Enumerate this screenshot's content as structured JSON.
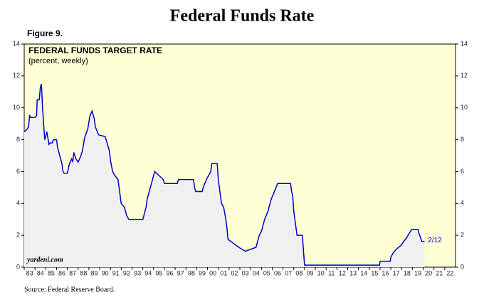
{
  "chart_data": {
    "type": "line",
    "title": "Federal Funds Rate",
    "figure_label": "Figure 9.",
    "panel_title": "FEDERAL FUNDS TARGET RATE",
    "subtitle": "(percent, weekly)",
    "watermark": "yardeni.com",
    "end_label": "2/12",
    "source": "Source: Federal Reserve Board.",
    "xlim": [
      1983,
      2023
    ],
    "ylim": [
      0,
      14
    ],
    "yticks": [
      0,
      2,
      4,
      6,
      8,
      10,
      12,
      14
    ],
    "xticks": [
      {
        "value": 1983,
        "label": "83"
      },
      {
        "value": 1984,
        "label": "84"
      },
      {
        "value": 1985,
        "label": "85"
      },
      {
        "value": 1986,
        "label": "86"
      },
      {
        "value": 1987,
        "label": "87"
      },
      {
        "value": 1988,
        "label": "88"
      },
      {
        "value": 1989,
        "label": "89"
      },
      {
        "value": 1990,
        "label": "90"
      },
      {
        "value": 1991,
        "label": "91"
      },
      {
        "value": 1992,
        "label": "92"
      },
      {
        "value": 1993,
        "label": "93"
      },
      {
        "value": 1994,
        "label": "94"
      },
      {
        "value": 1995,
        "label": "95"
      },
      {
        "value": 1996,
        "label": "96"
      },
      {
        "value": 1997,
        "label": "97"
      },
      {
        "value": 1998,
        "label": "98"
      },
      {
        "value": 1999,
        "label": "99"
      },
      {
        "value": 2000,
        "label": "00"
      },
      {
        "value": 2001,
        "label": "01"
      },
      {
        "value": 2002,
        "label": "02"
      },
      {
        "value": 2003,
        "label": "03"
      },
      {
        "value": 2004,
        "label": "04"
      },
      {
        "value": 2005,
        "label": "05"
      },
      {
        "value": 2006,
        "label": "06"
      },
      {
        "value": 2007,
        "label": "07"
      },
      {
        "value": 2008,
        "label": "08"
      },
      {
        "value": 2009,
        "label": "09"
      },
      {
        "value": 2010,
        "label": "10"
      },
      {
        "value": 2011,
        "label": "11"
      },
      {
        "value": 2012,
        "label": "12"
      },
      {
        "value": 2013,
        "label": "13"
      },
      {
        "value": 2014,
        "label": "14"
      },
      {
        "value": 2015,
        "label": "15"
      },
      {
        "value": 2016,
        "label": "16"
      },
      {
        "value": 2017,
        "label": "17"
      },
      {
        "value": 2018,
        "label": "18"
      },
      {
        "value": 2019,
        "label": "19"
      },
      {
        "value": 2020,
        "label": "20"
      },
      {
        "value": 2021,
        "label": "21"
      },
      {
        "value": 2022,
        "label": "22"
      }
    ],
    "color": "#0000cc",
    "fill_color": "#f0f0f0",
    "background": "#ffffd6",
    "x": [
      1983.0,
      1983.2,
      1983.4,
      1983.5,
      1983.6,
      1984.0,
      1984.15,
      1984.2,
      1984.4,
      1984.5,
      1984.6,
      1984.7,
      1984.8,
      1984.9,
      1985.0,
      1985.1,
      1985.3,
      1985.4,
      1985.6,
      1985.7,
      1986.0,
      1986.1,
      1986.3,
      1986.5,
      1986.6,
      1986.7,
      1987.0,
      1987.2,
      1987.4,
      1987.5,
      1987.6,
      1987.8,
      1988.0,
      1988.2,
      1988.4,
      1988.6,
      1988.9,
      1989.1,
      1989.3,
      1989.5,
      1989.6,
      1989.9,
      1990.5,
      1990.6,
      1990.9,
      1991.0,
      1991.2,
      1991.4,
      1991.7,
      1991.8,
      1991.9,
      1992.0,
      1992.3,
      1992.5,
      1992.7,
      1994.0,
      1994.1,
      1994.3,
      1994.4,
      1994.6,
      1994.9,
      1995.1,
      1995.5,
      1995.9,
      1996.0,
      1997.2,
      1997.3,
      1998.7,
      1998.8,
      1998.9,
      1999.5,
      1999.6,
      1999.9,
      2000.1,
      2000.3,
      2000.4,
      2000.9,
      2001.0,
      2001.1,
      2001.3,
      2001.5,
      2001.7,
      2001.8,
      2001.9,
      2002.9,
      2003.5,
      2004.5,
      2004.6,
      2004.8,
      2005.0,
      2005.3,
      2005.6,
      2005.9,
      2006.2,
      2006.5,
      2007.7,
      2007.8,
      2007.9,
      2008.0,
      2008.1,
      2008.3,
      2008.8,
      2008.9,
      2009.0,
      2015.95,
      2016.0,
      2016.95,
      2017.0,
      2017.2,
      2017.5,
      2017.95,
      2018.2,
      2018.5,
      2018.7,
      2018.95,
      2019.55,
      2019.6,
      2019.75,
      2019.85,
      2020.12
    ],
    "values": [
      8.5,
      8.6,
      8.8,
      9.5,
      9.4,
      9.4,
      9.5,
      10.5,
      10.5,
      11.3,
      11.5,
      10.0,
      9.0,
      8.0,
      8.2,
      8.5,
      7.7,
      7.8,
      7.8,
      8.0,
      8.0,
      7.5,
      7.0,
      6.5,
      6.0,
      5.9,
      5.9,
      6.5,
      6.8,
      6.6,
      7.2,
      6.8,
      6.6,
      6.9,
      7.3,
      8.1,
      8.7,
      9.5,
      9.8,
      9.3,
      8.8,
      8.3,
      8.2,
      8.0,
      7.3,
      6.7,
      6.0,
      5.75,
      5.5,
      5.0,
      4.5,
      4.0,
      3.75,
      3.25,
      3.0,
      3.0,
      3.25,
      3.75,
      4.25,
      4.75,
      5.5,
      6.0,
      5.75,
      5.5,
      5.25,
      5.25,
      5.5,
      5.5,
      5.0,
      4.75,
      4.75,
      5.0,
      5.5,
      5.75,
      6.0,
      6.5,
      6.5,
      5.5,
      5.0,
      4.0,
      3.75,
      3.0,
      2.5,
      1.75,
      1.25,
      1.0,
      1.25,
      1.5,
      2.0,
      2.25,
      3.0,
      3.5,
      4.25,
      4.75,
      5.25,
      5.25,
      4.75,
      4.5,
      3.5,
      3.0,
      2.0,
      2.0,
      1.0,
      0.13,
      0.13,
      0.375,
      0.375,
      0.625,
      0.875,
      1.125,
      1.375,
      1.625,
      1.875,
      2.125,
      2.375,
      2.375,
      2.125,
      1.875,
      1.625,
      1.625
    ]
  }
}
